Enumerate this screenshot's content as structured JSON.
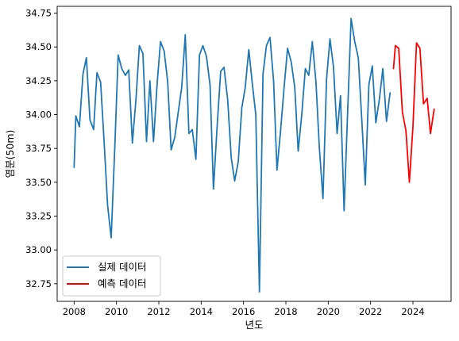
{
  "chart_data": {
    "type": "line",
    "xlabel": "년도",
    "ylabel": "염분(50m)",
    "xlim": [
      2007.2,
      2025.8
    ],
    "ylim": [
      32.62,
      34.8
    ],
    "x_ticks": [
      2008,
      2010,
      2012,
      2014,
      2016,
      2018,
      2020,
      2022,
      2024
    ],
    "y_ticks": [
      32.75,
      33.0,
      33.25,
      33.5,
      33.75,
      34.0,
      34.25,
      34.5,
      34.75
    ],
    "y_tick_labels": [
      "32.75",
      "33.00",
      "33.25",
      "33.50",
      "33.75",
      "34.00",
      "34.25",
      "34.50",
      "34.75"
    ],
    "grid": false,
    "legend_position": "lower-left",
    "series": [
      {
        "name": "실제 데이터",
        "color": "#1f77b4",
        "points": [
          [
            2008.0,
            33.61
          ],
          [
            2008.08,
            33.99
          ],
          [
            2008.25,
            33.91
          ],
          [
            2008.42,
            34.3
          ],
          [
            2008.58,
            34.42
          ],
          [
            2008.75,
            33.96
          ],
          [
            2008.92,
            33.89
          ],
          [
            2009.08,
            34.31
          ],
          [
            2009.25,
            34.24
          ],
          [
            2009.42,
            33.79
          ],
          [
            2009.58,
            33.33
          ],
          [
            2009.75,
            33.09
          ],
          [
            2009.92,
            33.75
          ],
          [
            2010.08,
            34.44
          ],
          [
            2010.25,
            34.34
          ],
          [
            2010.42,
            34.29
          ],
          [
            2010.58,
            34.33
          ],
          [
            2010.75,
            33.79
          ],
          [
            2010.92,
            34.11
          ],
          [
            2011.08,
            34.51
          ],
          [
            2011.25,
            34.45
          ],
          [
            2011.42,
            33.8
          ],
          [
            2011.58,
            34.25
          ],
          [
            2011.75,
            33.8
          ],
          [
            2011.92,
            34.23
          ],
          [
            2012.08,
            34.54
          ],
          [
            2012.25,
            34.47
          ],
          [
            2012.42,
            34.24
          ],
          [
            2012.58,
            33.74
          ],
          [
            2012.75,
            33.83
          ],
          [
            2012.92,
            34.02
          ],
          [
            2013.08,
            34.2
          ],
          [
            2013.25,
            34.59
          ],
          [
            2013.42,
            33.86
          ],
          [
            2013.58,
            33.89
          ],
          [
            2013.75,
            33.67
          ],
          [
            2013.92,
            34.44
          ],
          [
            2014.08,
            34.51
          ],
          [
            2014.25,
            34.43
          ],
          [
            2014.42,
            34.22
          ],
          [
            2014.58,
            33.45
          ],
          [
            2014.75,
            33.9
          ],
          [
            2014.92,
            34.32
          ],
          [
            2015.08,
            34.35
          ],
          [
            2015.25,
            34.11
          ],
          [
            2015.42,
            33.68
          ],
          [
            2015.58,
            33.51
          ],
          [
            2015.75,
            33.65
          ],
          [
            2015.92,
            34.05
          ],
          [
            2016.08,
            34.2
          ],
          [
            2016.25,
            34.48
          ],
          [
            2016.42,
            34.22
          ],
          [
            2016.58,
            34.0
          ],
          [
            2016.75,
            32.69
          ],
          [
            2016.92,
            34.3
          ],
          [
            2017.08,
            34.51
          ],
          [
            2017.25,
            34.57
          ],
          [
            2017.42,
            34.25
          ],
          [
            2017.58,
            33.59
          ],
          [
            2017.75,
            33.88
          ],
          [
            2017.92,
            34.21
          ],
          [
            2018.08,
            34.49
          ],
          [
            2018.25,
            34.39
          ],
          [
            2018.42,
            34.2
          ],
          [
            2018.58,
            33.73
          ],
          [
            2018.75,
            34.0
          ],
          [
            2018.92,
            34.34
          ],
          [
            2019.08,
            34.29
          ],
          [
            2019.25,
            34.54
          ],
          [
            2019.42,
            34.24
          ],
          [
            2019.58,
            33.76
          ],
          [
            2019.75,
            33.38
          ],
          [
            2019.92,
            34.26
          ],
          [
            2020.08,
            34.56
          ],
          [
            2020.25,
            34.35
          ],
          [
            2020.42,
            33.86
          ],
          [
            2020.58,
            34.14
          ],
          [
            2020.75,
            33.29
          ],
          [
            2020.92,
            34.04
          ],
          [
            2021.08,
            34.71
          ],
          [
            2021.25,
            34.54
          ],
          [
            2021.42,
            34.42
          ],
          [
            2021.58,
            33.97
          ],
          [
            2021.75,
            33.48
          ],
          [
            2021.92,
            34.22
          ],
          [
            2022.08,
            34.36
          ],
          [
            2022.25,
            33.94
          ],
          [
            2022.42,
            34.12
          ],
          [
            2022.58,
            34.34
          ],
          [
            2022.75,
            33.95
          ],
          [
            2022.92,
            34.16
          ]
        ]
      },
      {
        "name": "예측 데이터",
        "color": "#ff0000",
        "points": [
          [
            2023.08,
            34.34
          ],
          [
            2023.17,
            34.51
          ],
          [
            2023.33,
            34.49
          ],
          [
            2023.5,
            34.02
          ],
          [
            2023.67,
            33.88
          ],
          [
            2023.83,
            33.5
          ],
          [
            2024.0,
            33.91
          ],
          [
            2024.17,
            34.53
          ],
          [
            2024.33,
            34.49
          ],
          [
            2024.5,
            34.08
          ],
          [
            2024.67,
            34.12
          ],
          [
            2024.83,
            33.86
          ],
          [
            2025.0,
            34.04
          ]
        ]
      }
    ]
  }
}
